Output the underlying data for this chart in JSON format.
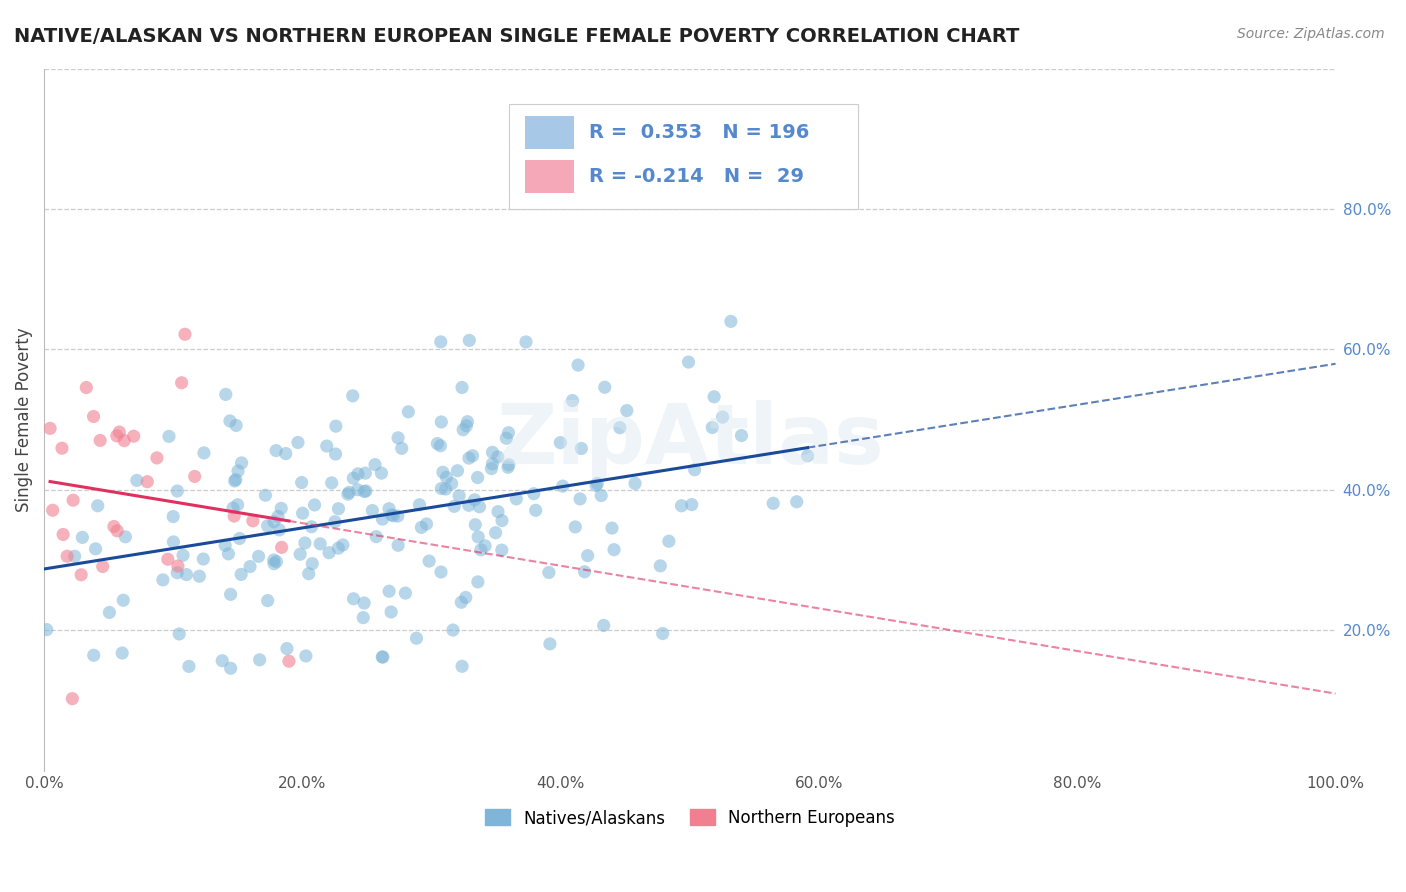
{
  "title": "NATIVE/ALASKAN VS NORTHERN EUROPEAN SINGLE FEMALE POVERTY CORRELATION CHART",
  "source": "Source: ZipAtlas.com",
  "ylabel": "Single Female Poverty",
  "xlim": [
    0,
    1.0
  ],
  "ylim": [
    0,
    1.0
  ],
  "xticks": [
    0.0,
    0.2,
    0.4,
    0.6,
    0.8,
    1.0
  ],
  "yticks": [
    0.2,
    0.4,
    0.6,
    0.8
  ],
  "blue_R": 0.353,
  "blue_N": 196,
  "pink_R": -0.214,
  "pink_N": 29,
  "blue_color": "#a8c8e8",
  "pink_color": "#f4a8b8",
  "blue_line_color": "#1a4a9a",
  "pink_line_color": "#e03060",
  "blue_scatter_color": "#7eb5d8",
  "pink_scatter_color": "#f08090",
  "legend_blue_label": "Natives/Alaskans",
  "legend_pink_label": "Northern Europeans",
  "watermark": "ZipAtlas",
  "background_color": "#ffffff",
  "grid_color": "#cccccc",
  "right_tick_color": "#5588cc",
  "title_color": "#222222",
  "source_color": "#888888"
}
